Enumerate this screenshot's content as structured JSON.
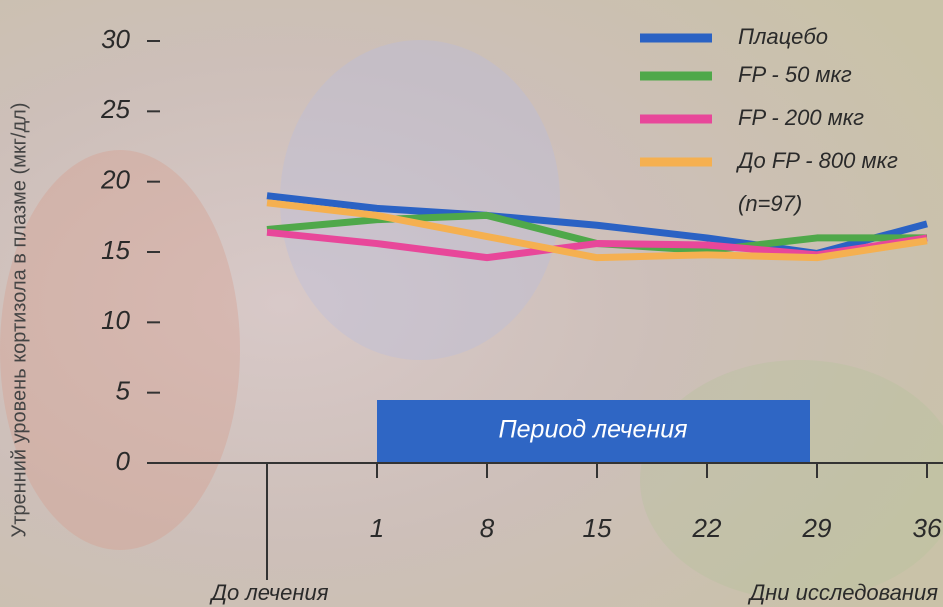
{
  "chart_data": {
    "type": "line",
    "y_label": "Утренний уровень кортизола в плазме (мкг/дл)",
    "x_label": "Дни исследования",
    "annotation": "Период лечения",
    "note": "(n=97)",
    "categories": [
      "До лечения",
      "1",
      "8",
      "15",
      "22",
      "29",
      "36"
    ],
    "ylim": [
      0,
      30
    ],
    "yticks": [
      0,
      5,
      10,
      15,
      20,
      25,
      30
    ],
    "series": [
      {
        "name": "Плацебо",
        "color": "#2a62c4",
        "values": [
          19.0,
          18.1,
          17.6,
          16.9,
          16.0,
          14.9,
          17.0
        ]
      },
      {
        "name": "FP - 50  мкг",
        "color": "#4fa84a",
        "values": [
          16.6,
          17.3,
          17.6,
          15.6,
          15.1,
          16.0,
          16.0
        ]
      },
      {
        "name": "FP - 200 мкг",
        "color": "#e8479a",
        "values": [
          16.4,
          15.6,
          14.6,
          15.6,
          15.5,
          14.8,
          16.0
        ]
      },
      {
        "name": "До FP - 800 мкг",
        "color": "#f5b050",
        "values": [
          18.5,
          17.6,
          16.1,
          14.6,
          14.8,
          14.6,
          15.8
        ]
      }
    ]
  }
}
